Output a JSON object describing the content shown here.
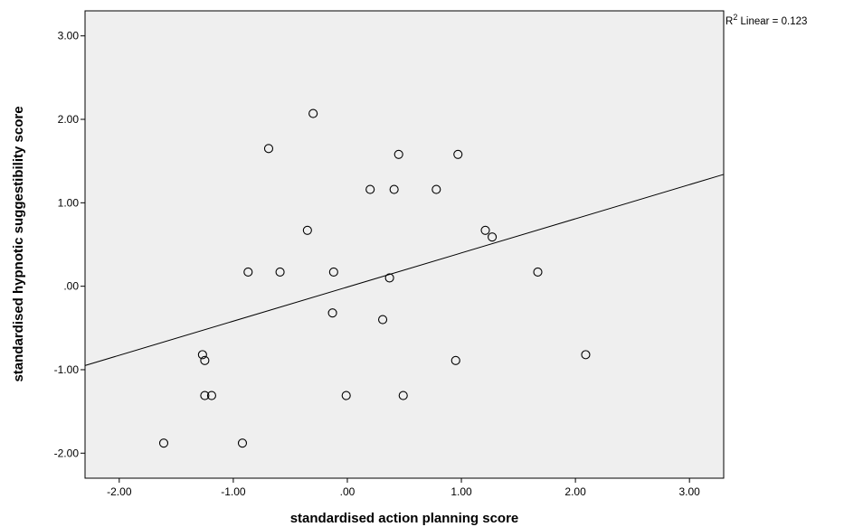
{
  "chart_data": {
    "type": "scatter",
    "title": "",
    "xlabel": "standardised action planning score",
    "ylabel": "standardised hypnotic suggestibility score",
    "xlim": [
      -2.3,
      3.3
    ],
    "ylim": [
      -2.3,
      3.3
    ],
    "x_ticks": [
      -2.0,
      -1.0,
      0.0,
      1.0,
      2.0,
      3.0
    ],
    "x_tick_labels": [
      "-2.00",
      "-1.00",
      ".00",
      "1.00",
      "2.00",
      "3.00"
    ],
    "y_ticks": [
      -2.0,
      -1.0,
      0.0,
      1.0,
      2.0,
      3.0
    ],
    "y_tick_labels": [
      "-2.00",
      "-1.00",
      ".00",
      "1.00",
      "2.00",
      "3.00"
    ],
    "grid": false,
    "plot_background": "#efefef",
    "marker": "open-circle",
    "points": [
      {
        "x": -0.3,
        "y": 2.07
      },
      {
        "x": -0.69,
        "y": 1.65
      },
      {
        "x": 0.45,
        "y": 1.58
      },
      {
        "x": 0.97,
        "y": 1.58
      },
      {
        "x": 0.2,
        "y": 1.16
      },
      {
        "x": 0.41,
        "y": 1.16
      },
      {
        "x": 0.78,
        "y": 1.16
      },
      {
        "x": -0.35,
        "y": 0.67
      },
      {
        "x": 1.21,
        "y": 0.67
      },
      {
        "x": 1.27,
        "y": 0.59
      },
      {
        "x": -0.87,
        "y": 0.17
      },
      {
        "x": -0.59,
        "y": 0.17
      },
      {
        "x": -0.12,
        "y": 0.17
      },
      {
        "x": 1.67,
        "y": 0.17
      },
      {
        "x": 0.37,
        "y": 0.1
      },
      {
        "x": -0.13,
        "y": -0.32
      },
      {
        "x": 0.31,
        "y": -0.4
      },
      {
        "x": -1.27,
        "y": -0.82
      },
      {
        "x": -1.25,
        "y": -0.89
      },
      {
        "x": 0.95,
        "y": -0.89
      },
      {
        "x": 2.09,
        "y": -0.82
      },
      {
        "x": -1.25,
        "y": -1.31
      },
      {
        "x": -1.19,
        "y": -1.31
      },
      {
        "x": -0.01,
        "y": -1.31
      },
      {
        "x": 0.49,
        "y": -1.31
      },
      {
        "x": -1.61,
        "y": -1.88
      },
      {
        "x": -0.92,
        "y": -1.88
      }
    ],
    "fit_line": {
      "type": "linear",
      "points": [
        {
          "x": -2.3,
          "y": -0.95
        },
        {
          "x": 3.3,
          "y": 1.34
        }
      ],
      "r2_label_prefix": "R",
      "r2_label_sup": "2",
      "r2_label_rest": " Linear = 0.123"
    }
  }
}
